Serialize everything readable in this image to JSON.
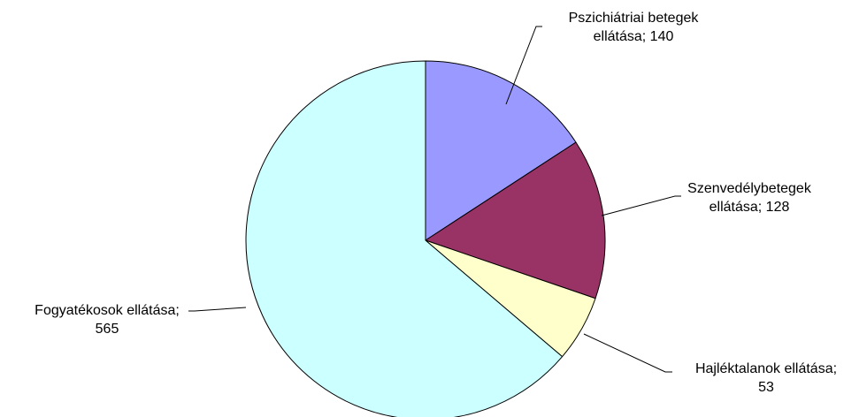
{
  "chart_data": {
    "type": "pie",
    "slices": [
      {
        "name": "Pszichiátriai betegek ellátása",
        "value": 140,
        "color": "#9999ff",
        "label_lines": [
          "Pszichiátriai  betegek",
          "ellátása; 140"
        ]
      },
      {
        "name": "Szenvedélybetegek ellátása",
        "value": 128,
        "color": "#993366",
        "label_lines": [
          "Szenvedélybetegek",
          "ellátása; 128"
        ]
      },
      {
        "name": "Hajléktalanok ellátása",
        "value": 53,
        "color": "#ffffcc",
        "label_lines": [
          "Hajléktalanok  ellátása;",
          "53"
        ]
      },
      {
        "name": "Fogyatékosok ellátása",
        "value": 565,
        "color": "#ccffff",
        "label_lines": [
          "Fogyatékosok ellátása;",
          "565"
        ]
      }
    ],
    "start_angle": "12 o'clock",
    "direction": "clockwise",
    "legend": "none",
    "title": ""
  }
}
